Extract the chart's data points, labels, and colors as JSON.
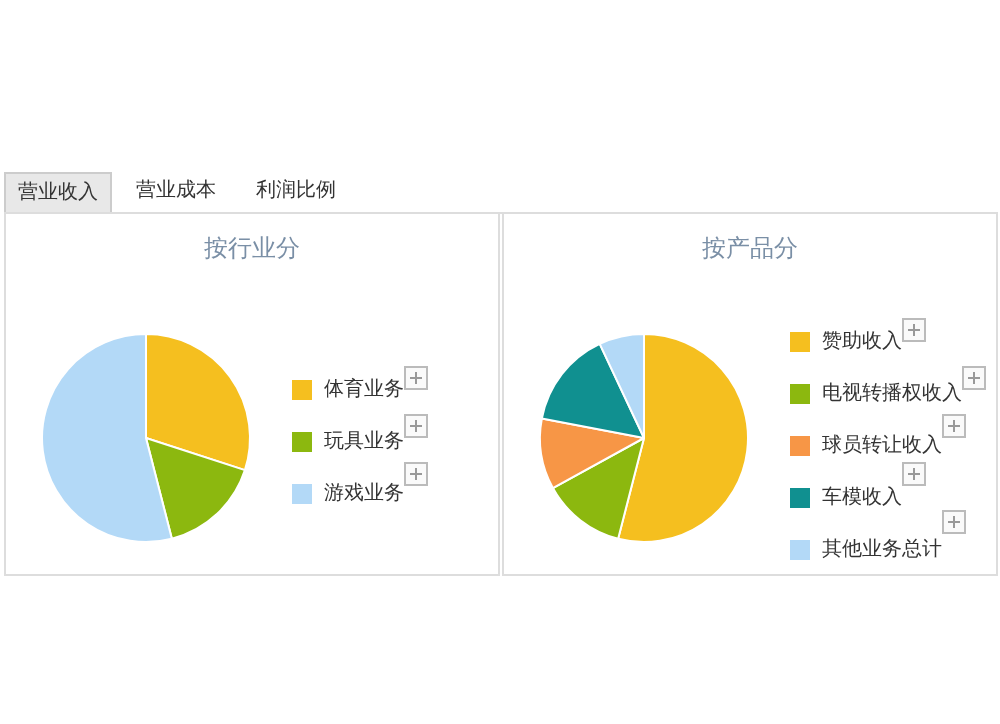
{
  "chart_data": [
    {
      "type": "other",
      "annotations": [
        "营业收入",
        "营业成本",
        "利润比例"
      ]
    },
    {
      "type": "pie",
      "title": "按行业分",
      "categories": [
        "体育业务",
        "玩具业务",
        "游戏业务"
      ],
      "values": [
        30,
        16,
        54
      ],
      "colors": [
        "#f5bf1f",
        "#8cb80f",
        "#b3d9f7"
      ],
      "legend": "right"
    },
    {
      "type": "pie",
      "title": "按产品分",
      "categories": [
        "赞助收入",
        "电视转播权收入",
        "球员转让收入",
        "车模收入",
        "其他业务总计"
      ],
      "values": [
        54,
        13,
        11,
        15,
        7
      ],
      "colors": [
        "#f5bf1f",
        "#8cb80f",
        "#f79646",
        "#109090",
        "#b3d9f7"
      ],
      "legend": "right"
    }
  ]
}
